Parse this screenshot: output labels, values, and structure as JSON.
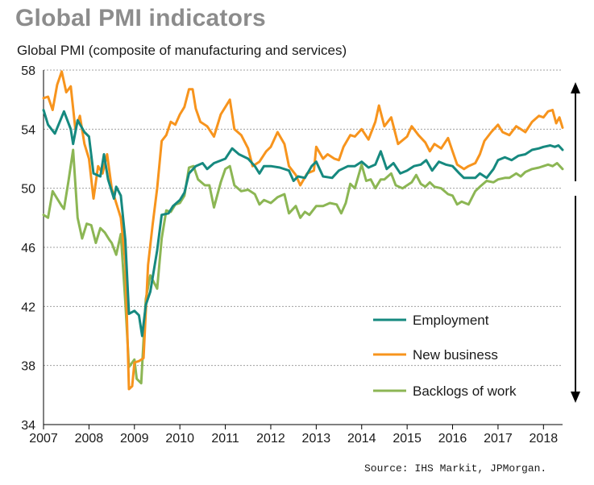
{
  "title": "Global PMI indicators",
  "subtitle": "Global PMI (composite of manufacturing and services)",
  "source": "Source: IHS Markit, JPMorgan.",
  "chart_data": {
    "type": "line",
    "title": "Global PMI indicators",
    "ylabel": "",
    "xlabel": "",
    "ylim": [
      34,
      58
    ],
    "xlim": [
      2007.0,
      2018.42
    ],
    "yticks": [
      34,
      38,
      42,
      46,
      50,
      54,
      58
    ],
    "xticks": [
      "2007",
      "2008",
      "2009",
      "2010",
      "2011",
      "2012",
      "2013",
      "2014",
      "2015",
      "2016",
      "2017",
      "2018"
    ],
    "grid": "horizontal dashed",
    "legend_position": "bottom-right",
    "series": [
      {
        "name": "Employment",
        "color": "#16897f",
        "points": [
          [
            2007.0,
            55.3
          ],
          [
            2007.1,
            54.3
          ],
          [
            2007.25,
            53.7
          ],
          [
            2007.45,
            55.2
          ],
          [
            2007.6,
            54.0
          ],
          [
            2007.65,
            53.0
          ],
          [
            2007.75,
            54.6
          ],
          [
            2007.9,
            53.8
          ],
          [
            2008.0,
            53.5
          ],
          [
            2008.1,
            51.0
          ],
          [
            2008.25,
            50.8
          ],
          [
            2008.33,
            52.3
          ],
          [
            2008.42,
            50.6
          ],
          [
            2008.55,
            49.3
          ],
          [
            2008.6,
            50.1
          ],
          [
            2008.7,
            49.5
          ],
          [
            2008.8,
            46.5
          ],
          [
            2008.88,
            41.5
          ],
          [
            2009.0,
            41.7
          ],
          [
            2009.1,
            41.4
          ],
          [
            2009.17,
            40.0
          ],
          [
            2009.25,
            42.1
          ],
          [
            2009.35,
            43.0
          ],
          [
            2009.5,
            45.8
          ],
          [
            2009.6,
            48.2
          ],
          [
            2009.75,
            48.3
          ],
          [
            2009.85,
            48.8
          ],
          [
            2010.0,
            49.2
          ],
          [
            2010.1,
            49.7
          ],
          [
            2010.2,
            51.0
          ],
          [
            2010.35,
            51.5
          ],
          [
            2010.5,
            51.7
          ],
          [
            2010.6,
            51.3
          ],
          [
            2010.75,
            51.7
          ],
          [
            2011.0,
            52.0
          ],
          [
            2011.15,
            52.7
          ],
          [
            2011.3,
            52.3
          ],
          [
            2011.5,
            52.0
          ],
          [
            2011.65,
            51.5
          ],
          [
            2011.75,
            51.0
          ],
          [
            2011.85,
            51.5
          ],
          [
            2012.0,
            51.5
          ],
          [
            2012.2,
            51.4
          ],
          [
            2012.4,
            51.2
          ],
          [
            2012.5,
            50.5
          ],
          [
            2012.6,
            50.8
          ],
          [
            2012.75,
            50.7
          ],
          [
            2012.9,
            51.5
          ],
          [
            2013.0,
            51.8
          ],
          [
            2013.15,
            50.8
          ],
          [
            2013.35,
            50.7
          ],
          [
            2013.5,
            51.2
          ],
          [
            2013.7,
            51.5
          ],
          [
            2013.85,
            51.5
          ],
          [
            2014.0,
            51.8
          ],
          [
            2014.15,
            51.4
          ],
          [
            2014.3,
            51.6
          ],
          [
            2014.42,
            52.5
          ],
          [
            2014.55,
            51.3
          ],
          [
            2014.7,
            51.7
          ],
          [
            2014.85,
            51.0
          ],
          [
            2015.0,
            51.2
          ],
          [
            2015.15,
            51.5
          ],
          [
            2015.3,
            51.6
          ],
          [
            2015.42,
            51.9
          ],
          [
            2015.55,
            51.2
          ],
          [
            2015.7,
            51.8
          ],
          [
            2015.85,
            51.6
          ],
          [
            2016.0,
            51.5
          ],
          [
            2016.15,
            51.0
          ],
          [
            2016.25,
            50.7
          ],
          [
            2016.5,
            50.7
          ],
          [
            2016.6,
            51.0
          ],
          [
            2016.75,
            50.7
          ],
          [
            2016.9,
            51.3
          ],
          [
            2017.0,
            51.9
          ],
          [
            2017.15,
            52.1
          ],
          [
            2017.3,
            51.9
          ],
          [
            2017.45,
            52.2
          ],
          [
            2017.6,
            52.3
          ],
          [
            2017.75,
            52.6
          ],
          [
            2017.9,
            52.7
          ],
          [
            2018.0,
            52.8
          ],
          [
            2018.15,
            52.9
          ],
          [
            2018.25,
            52.8
          ],
          [
            2018.33,
            52.9
          ],
          [
            2018.42,
            52.6
          ]
        ]
      },
      {
        "name": "New business",
        "color": "#f7941d",
        "points": [
          [
            2007.0,
            56.1
          ],
          [
            2007.1,
            56.2
          ],
          [
            2007.2,
            55.3
          ],
          [
            2007.3,
            57.0
          ],
          [
            2007.4,
            57.9
          ],
          [
            2007.5,
            56.5
          ],
          [
            2007.6,
            56.9
          ],
          [
            2007.7,
            54.0
          ],
          [
            2007.8,
            54.9
          ],
          [
            2007.9,
            53.0
          ],
          [
            2008.0,
            52.0
          ],
          [
            2008.1,
            49.3
          ],
          [
            2008.2,
            51.5
          ],
          [
            2008.3,
            51.0
          ],
          [
            2008.4,
            52.3
          ],
          [
            2008.5,
            50.0
          ],
          [
            2008.6,
            49.0
          ],
          [
            2008.7,
            48.0
          ],
          [
            2008.8,
            45.0
          ],
          [
            2008.88,
            36.4
          ],
          [
            2008.95,
            36.6
          ],
          [
            2009.0,
            38.2
          ],
          [
            2009.1,
            38.3
          ],
          [
            2009.2,
            38.5
          ],
          [
            2009.3,
            44.8
          ],
          [
            2009.4,
            47.5
          ],
          [
            2009.5,
            50.0
          ],
          [
            2009.6,
            53.2
          ],
          [
            2009.7,
            53.6
          ],
          [
            2009.8,
            54.5
          ],
          [
            2009.9,
            54.3
          ],
          [
            2010.0,
            55.0
          ],
          [
            2010.1,
            55.5
          ],
          [
            2010.2,
            56.7
          ],
          [
            2010.28,
            56.7
          ],
          [
            2010.35,
            55.4
          ],
          [
            2010.45,
            54.5
          ],
          [
            2010.6,
            54.2
          ],
          [
            2010.75,
            53.5
          ],
          [
            2010.9,
            55.0
          ],
          [
            2011.0,
            55.5
          ],
          [
            2011.1,
            56.0
          ],
          [
            2011.2,
            54.0
          ],
          [
            2011.35,
            53.6
          ],
          [
            2011.5,
            52.7
          ],
          [
            2011.6,
            51.5
          ],
          [
            2011.75,
            51.8
          ],
          [
            2011.9,
            52.5
          ],
          [
            2012.0,
            52.8
          ],
          [
            2012.15,
            53.8
          ],
          [
            2012.3,
            53.0
          ],
          [
            2012.4,
            51.5
          ],
          [
            2012.55,
            50.9
          ],
          [
            2012.65,
            50.2
          ],
          [
            2012.8,
            51.0
          ],
          [
            2012.95,
            51.2
          ],
          [
            2013.0,
            52.8
          ],
          [
            2013.15,
            52.0
          ],
          [
            2013.25,
            52.3
          ],
          [
            2013.4,
            52.0
          ],
          [
            2013.5,
            51.9
          ],
          [
            2013.6,
            52.8
          ],
          [
            2013.75,
            53.6
          ],
          [
            2013.85,
            53.5
          ],
          [
            2014.0,
            54.0
          ],
          [
            2014.15,
            53.3
          ],
          [
            2014.3,
            54.5
          ],
          [
            2014.38,
            55.6
          ],
          [
            2014.5,
            54.2
          ],
          [
            2014.65,
            54.8
          ],
          [
            2014.8,
            53.0
          ],
          [
            2015.0,
            53.5
          ],
          [
            2015.1,
            54.2
          ],
          [
            2015.25,
            53.6
          ],
          [
            2015.4,
            53.1
          ],
          [
            2015.5,
            52.5
          ],
          [
            2015.6,
            53.0
          ],
          [
            2015.75,
            52.7
          ],
          [
            2015.9,
            53.4
          ],
          [
            2016.0,
            52.5
          ],
          [
            2016.1,
            51.6
          ],
          [
            2016.25,
            51.3
          ],
          [
            2016.35,
            51.5
          ],
          [
            2016.5,
            51.7
          ],
          [
            2016.6,
            52.3
          ],
          [
            2016.7,
            53.2
          ],
          [
            2016.85,
            53.8
          ],
          [
            2017.0,
            54.3
          ],
          [
            2017.1,
            53.8
          ],
          [
            2017.25,
            53.6
          ],
          [
            2017.4,
            54.2
          ],
          [
            2017.5,
            54.0
          ],
          [
            2017.6,
            53.8
          ],
          [
            2017.75,
            54.5
          ],
          [
            2017.9,
            54.9
          ],
          [
            2018.0,
            54.8
          ],
          [
            2018.1,
            55.2
          ],
          [
            2018.2,
            55.3
          ],
          [
            2018.28,
            54.4
          ],
          [
            2018.35,
            54.8
          ],
          [
            2018.42,
            54.1
          ]
        ]
      },
      {
        "name": "Backlogs of work",
        "color": "#8cb654",
        "points": [
          [
            2007.0,
            48.2
          ],
          [
            2007.1,
            48.0
          ],
          [
            2007.2,
            49.8
          ],
          [
            2007.3,
            49.3
          ],
          [
            2007.4,
            48.8
          ],
          [
            2007.45,
            48.6
          ],
          [
            2007.55,
            50.5
          ],
          [
            2007.65,
            52.6
          ],
          [
            2007.75,
            48.0
          ],
          [
            2007.85,
            46.6
          ],
          [
            2007.95,
            47.6
          ],
          [
            2008.05,
            47.5
          ],
          [
            2008.15,
            46.3
          ],
          [
            2008.25,
            47.3
          ],
          [
            2008.35,
            47.0
          ],
          [
            2008.45,
            46.5
          ],
          [
            2008.5,
            46.3
          ],
          [
            2008.6,
            45.5
          ],
          [
            2008.7,
            46.9
          ],
          [
            2008.8,
            42.3
          ],
          [
            2008.88,
            37.9
          ],
          [
            2009.0,
            38.4
          ],
          [
            2009.05,
            37.1
          ],
          [
            2009.15,
            36.8
          ],
          [
            2009.25,
            42.5
          ],
          [
            2009.35,
            44.1
          ],
          [
            2009.5,
            43.2
          ],
          [
            2009.6,
            46.6
          ],
          [
            2009.7,
            48.5
          ],
          [
            2009.8,
            48.4
          ],
          [
            2009.9,
            48.9
          ],
          [
            2010.0,
            49.0
          ],
          [
            2010.1,
            49.5
          ],
          [
            2010.2,
            51.4
          ],
          [
            2010.3,
            51.5
          ],
          [
            2010.4,
            50.6
          ],
          [
            2010.55,
            50.2
          ],
          [
            2010.65,
            50.2
          ],
          [
            2010.75,
            48.7
          ],
          [
            2010.9,
            50.4
          ],
          [
            2011.0,
            51.3
          ],
          [
            2011.1,
            51.5
          ],
          [
            2011.2,
            50.2
          ],
          [
            2011.35,
            49.8
          ],
          [
            2011.5,
            49.9
          ],
          [
            2011.65,
            49.6
          ],
          [
            2011.75,
            48.9
          ],
          [
            2011.85,
            49.2
          ],
          [
            2012.0,
            49.0
          ],
          [
            2012.15,
            49.4
          ],
          [
            2012.3,
            49.6
          ],
          [
            2012.4,
            48.3
          ],
          [
            2012.55,
            48.8
          ],
          [
            2012.65,
            48.0
          ],
          [
            2012.75,
            48.4
          ],
          [
            2012.85,
            48.2
          ],
          [
            2013.0,
            48.8
          ],
          [
            2013.15,
            48.8
          ],
          [
            2013.3,
            49.0
          ],
          [
            2013.45,
            48.9
          ],
          [
            2013.55,
            48.3
          ],
          [
            2013.65,
            49.0
          ],
          [
            2013.75,
            50.3
          ],
          [
            2013.85,
            50.0
          ],
          [
            2014.0,
            51.6
          ],
          [
            2014.1,
            50.5
          ],
          [
            2014.2,
            50.6
          ],
          [
            2014.3,
            50.0
          ],
          [
            2014.42,
            50.6
          ],
          [
            2014.5,
            50.6
          ],
          [
            2014.65,
            51.0
          ],
          [
            2014.75,
            50.2
          ],
          [
            2014.9,
            50.0
          ],
          [
            2015.0,
            50.2
          ],
          [
            2015.1,
            50.4
          ],
          [
            2015.2,
            50.9
          ],
          [
            2015.3,
            50.3
          ],
          [
            2015.4,
            50.1
          ],
          [
            2015.5,
            50.4
          ],
          [
            2015.6,
            50.1
          ],
          [
            2015.75,
            50.0
          ],
          [
            2015.9,
            49.6
          ],
          [
            2016.0,
            49.5
          ],
          [
            2016.1,
            48.9
          ],
          [
            2016.2,
            49.1
          ],
          [
            2016.35,
            48.9
          ],
          [
            2016.5,
            49.8
          ],
          [
            2016.6,
            50.1
          ],
          [
            2016.75,
            50.5
          ],
          [
            2016.9,
            50.4
          ],
          [
            2017.0,
            50.6
          ],
          [
            2017.15,
            50.7
          ],
          [
            2017.25,
            50.7
          ],
          [
            2017.4,
            51.0
          ],
          [
            2017.5,
            50.8
          ],
          [
            2017.6,
            51.1
          ],
          [
            2017.75,
            51.3
          ],
          [
            2017.9,
            51.4
          ],
          [
            2018.0,
            51.5
          ],
          [
            2018.1,
            51.6
          ],
          [
            2018.2,
            51.5
          ],
          [
            2018.3,
            51.7
          ],
          [
            2018.42,
            51.3
          ]
        ]
      }
    ]
  }
}
